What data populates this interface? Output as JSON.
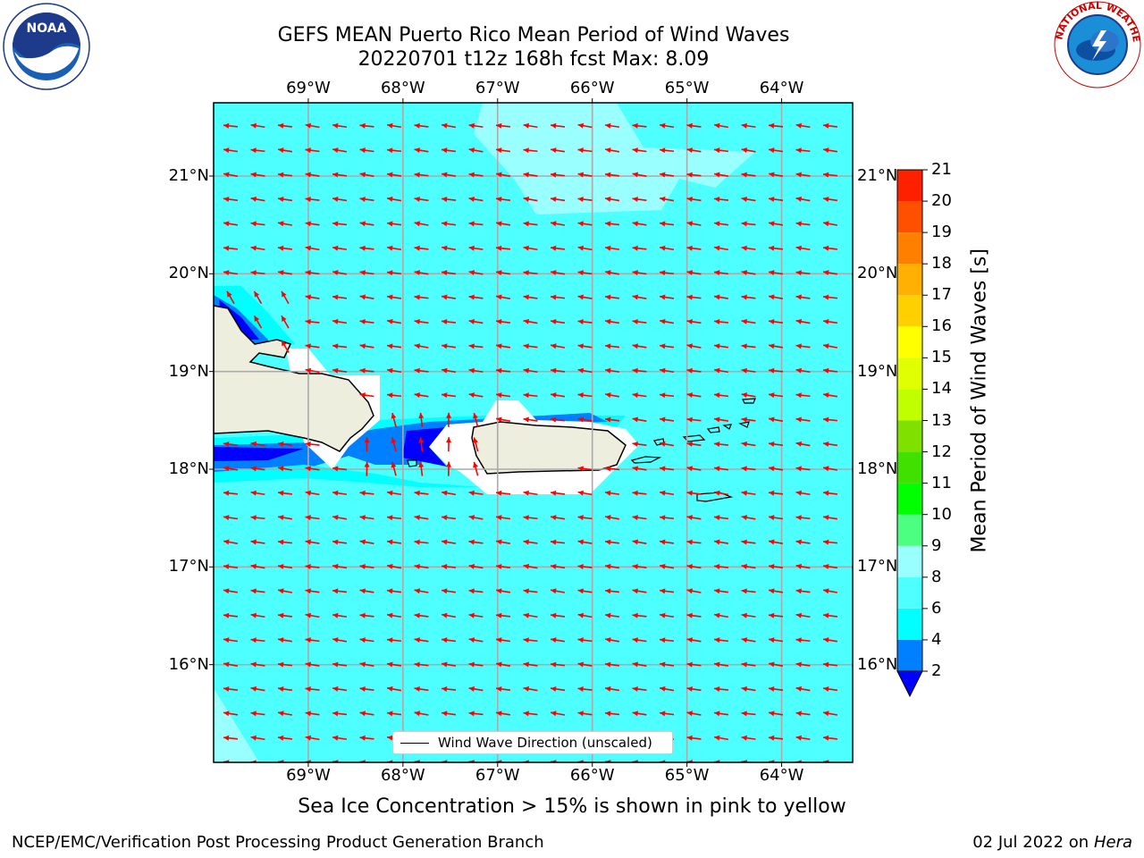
{
  "title": {
    "line1": "GEFS MEAN Puerto Rico Mean Period of Wind Waves",
    "line2": "20220701 t12z 168h fcst   Max: 8.09"
  },
  "logos": {
    "left": {
      "text": "NOAA",
      "icon": "noaa-logo"
    },
    "right": {
      "text": "NATIONAL WEATHER SERVICE",
      "icon": "nws-logo"
    }
  },
  "map": {
    "lon_ticks": [
      "69°W",
      "68°W",
      "67°W",
      "66°W",
      "65°W",
      "64°W"
    ],
    "lon_values": [
      -69,
      -68,
      -67,
      -66,
      -65,
      -64
    ],
    "lat_ticks": [
      "21°N",
      "20°N",
      "19°N",
      "18°N",
      "17°N",
      "16°N"
    ],
    "lat_values": [
      21,
      20,
      19,
      18,
      17,
      16
    ],
    "extent": {
      "lon": [
        -70,
        -63.25
      ],
      "lat": [
        15,
        21.75
      ]
    },
    "ocean_color": "#4dffff",
    "land_color": "#eeeede",
    "arrow_color": "#ff0000",
    "legend_label": "Wind Wave Direction (unscaled)"
  },
  "colorbar": {
    "label": "Mean Period of Wind Waves [s]",
    "levels": [
      2,
      4,
      6,
      8,
      9,
      10,
      11,
      12,
      13,
      14,
      15,
      16,
      17,
      18,
      19,
      20,
      21
    ],
    "tick_labels": [
      "2",
      "4",
      "6",
      "8",
      "9",
      "10",
      "11",
      "12",
      "13",
      "14",
      "15",
      "16",
      "17",
      "18",
      "19",
      "20",
      "21"
    ],
    "colors": [
      "#0080ff",
      "#00ffff",
      "#4dffff",
      "#99ffff",
      "#4dff80",
      "#00ff00",
      "#40e000",
      "#80e000",
      "#c0ff00",
      "#e0ff00",
      "#ffff00",
      "#ffd000",
      "#ffb000",
      "#ff8000",
      "#ff5000",
      "#ff2000"
    ],
    "under_color": "#0000ff"
  },
  "caption": "Sea Ice Concentration > 15% is shown in pink to yellow",
  "footer": {
    "left": "NCEP/EMC/Verification Post Processing Product Generation Branch",
    "right_prefix": "02 Jul 2022 on ",
    "right_host": "Hera"
  }
}
